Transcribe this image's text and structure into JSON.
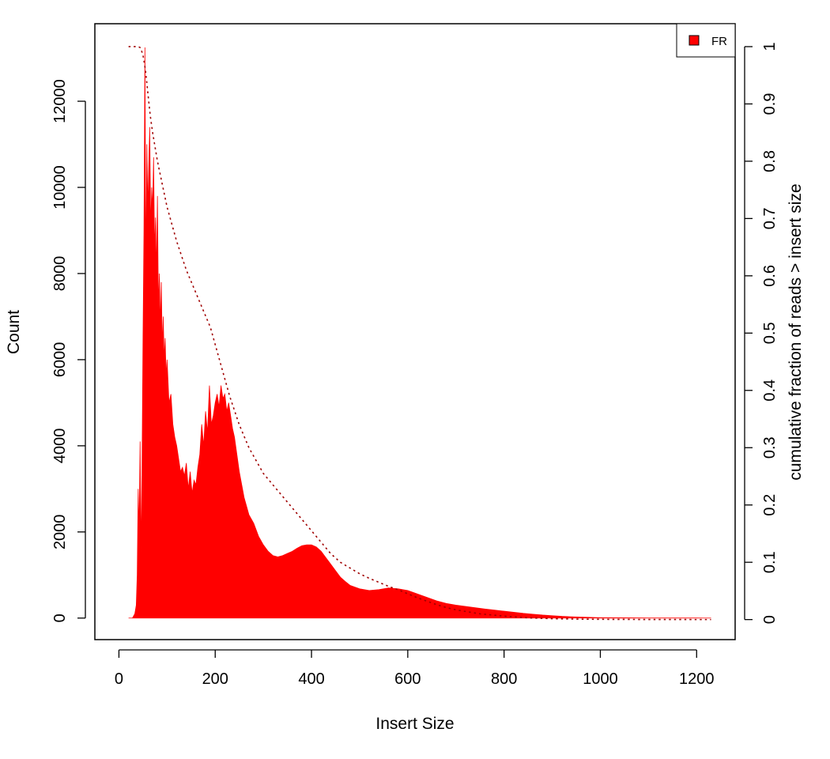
{
  "chart_data": {
    "type": "area",
    "xlabel": "Insert Size",
    "ylabel": "Count",
    "y2label": "cumulative fraction of reads > insert size",
    "xlim": [
      -50,
      1280
    ],
    "ylim": [
      -500,
      13800
    ],
    "y2lim": [
      -0.035,
      1.04
    ],
    "x_ticks": [
      0,
      200,
      400,
      600,
      800,
      1000,
      1200
    ],
    "x_tick_labels": [
      "0",
      "200",
      "400",
      "600",
      "800",
      "1000",
      "1200"
    ],
    "y_ticks": [
      0,
      2000,
      4000,
      6000,
      8000,
      10000,
      12000
    ],
    "y_tick_labels": [
      "0",
      "2000",
      "4000",
      "6000",
      "8000",
      "10000",
      "12000"
    ],
    "y2_ticks": [
      0,
      0.1,
      0.2,
      0.3,
      0.4,
      0.5,
      0.6,
      0.7,
      0.8,
      0.9,
      1
    ],
    "y2_tick_labels": [
      "0",
      "0.1",
      "0.2",
      "0.3",
      "0.4",
      "0.5",
      "0.6",
      "0.7",
      "0.8",
      "0.9",
      "1"
    ],
    "legend": {
      "position": "top-right",
      "entries": [
        {
          "label": "FR",
          "color": "#ff0000"
        }
      ]
    },
    "grid": false,
    "series": [
      {
        "name": "FR",
        "kind": "histogram",
        "color": "#ff0000",
        "x": [
          20,
          28,
          33,
          36,
          38,
          40,
          42,
          44,
          46,
          48,
          50,
          52,
          54,
          56,
          58,
          60,
          62,
          64,
          66,
          68,
          70,
          72,
          74,
          76,
          78,
          80,
          82,
          84,
          86,
          88,
          90,
          92,
          94,
          96,
          98,
          100,
          104,
          108,
          112,
          116,
          120,
          124,
          128,
          132,
          136,
          140,
          144,
          148,
          152,
          156,
          160,
          164,
          168,
          172,
          176,
          180,
          184,
          188,
          192,
          196,
          200,
          204,
          208,
          212,
          216,
          220,
          224,
          228,
          232,
          236,
          240,
          245,
          250,
          255,
          260,
          265,
          270,
          280,
          290,
          300,
          310,
          320,
          330,
          340,
          350,
          360,
          370,
          380,
          390,
          400,
          410,
          420,
          430,
          440,
          450,
          460,
          470,
          480,
          500,
          520,
          540,
          560,
          580,
          600,
          620,
          640,
          660,
          680,
          700,
          720,
          740,
          760,
          780,
          800,
          820,
          840,
          860,
          880,
          900,
          920,
          940,
          960,
          980,
          1000,
          1050,
          1100,
          1150,
          1200,
          1230
        ],
        "y": [
          0,
          0,
          100,
          300,
          1000,
          3000,
          2000,
          4100,
          1500,
          3500,
          6500,
          9000,
          13250,
          8000,
          11000,
          9500,
          10500,
          11400,
          9000,
          10000,
          9500,
          10700,
          8500,
          9300,
          8000,
          9800,
          7200,
          8000,
          6800,
          7800,
          6300,
          7000,
          6000,
          6500,
          5600,
          6000,
          5000,
          5200,
          4500,
          4200,
          4000,
          3700,
          3400,
          3500,
          3300,
          3600,
          3000,
          3400,
          2900,
          3200,
          3100,
          3500,
          3800,
          4500,
          4000,
          4800,
          4300,
          5400,
          4500,
          4700,
          5000,
          5200,
          4900,
          5400,
          5100,
          5200,
          4800,
          5000,
          4700,
          4400,
          4200,
          3800,
          3400,
          3100,
          2800,
          2600,
          2400,
          2200,
          1900,
          1700,
          1550,
          1450,
          1420,
          1450,
          1500,
          1550,
          1620,
          1680,
          1700,
          1700,
          1650,
          1550,
          1400,
          1250,
          1100,
          950,
          850,
          760,
          680,
          640,
          660,
          700,
          680,
          640,
          560,
          480,
          400,
          340,
          300,
          270,
          240,
          210,
          185,
          160,
          135,
          110,
          90,
          70,
          55,
          40,
          30,
          22,
          15,
          10,
          6,
          3,
          2,
          1,
          0
        ]
      },
      {
        "name": "cumulative fraction of reads > insert size",
        "kind": "line",
        "axis": "right",
        "color": "#a00000",
        "dash": "dotted",
        "x": [
          20,
          30,
          40,
          45,
          50,
          55,
          60,
          65,
          70,
          80,
          90,
          100,
          110,
          120,
          130,
          140,
          150,
          160,
          170,
          180,
          190,
          200,
          210,
          220,
          230,
          240,
          250,
          260,
          270,
          280,
          290,
          300,
          320,
          340,
          360,
          380,
          400,
          420,
          440,
          460,
          480,
          500,
          520,
          540,
          560,
          580,
          600,
          620,
          640,
          660,
          680,
          700,
          750,
          800,
          850,
          900,
          950,
          1000,
          1100,
          1230
        ],
        "y": [
          1,
          1,
          1,
          0.998,
          0.985,
          0.96,
          0.92,
          0.88,
          0.85,
          0.8,
          0.76,
          0.72,
          0.69,
          0.66,
          0.635,
          0.61,
          0.59,
          0.57,
          0.55,
          0.53,
          0.51,
          0.48,
          0.45,
          0.42,
          0.39,
          0.365,
          0.34,
          0.32,
          0.3,
          0.285,
          0.27,
          0.255,
          0.235,
          0.215,
          0.195,
          0.175,
          0.155,
          0.135,
          0.115,
          0.1,
          0.09,
          0.08,
          0.072,
          0.065,
          0.058,
          0.052,
          0.045,
          0.038,
          0.032,
          0.026,
          0.021,
          0.017,
          0.01,
          0.006,
          0.003,
          0.0015,
          0.0008,
          0.0004,
          0.0001,
          0
        ]
      }
    ]
  }
}
